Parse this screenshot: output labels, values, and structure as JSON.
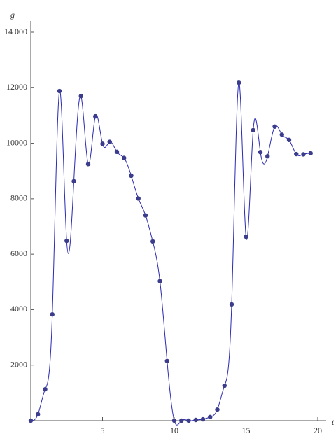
{
  "chart_data": {
    "type": "line",
    "markers": true,
    "smooth": true,
    "x_label": "t",
    "y_label": "g",
    "x": [
      0,
      0.5,
      1,
      1.5,
      2,
      2.5,
      3,
      3.5,
      4,
      4.5,
      5,
      5.5,
      6,
      6.5,
      7,
      7.5,
      8,
      8.5,
      9,
      9.5,
      10,
      10.5,
      11,
      11.5,
      12,
      12.5,
      13,
      13.5,
      14,
      14.5,
      15,
      15.5,
      16,
      16.5,
      17,
      17.5,
      18,
      18.5,
      19,
      19.5
    ],
    "values": [
      0,
      230,
      1130,
      3830,
      11880,
      6480,
      8630,
      11700,
      9250,
      10970,
      9980,
      10050,
      9690,
      9470,
      8830,
      8010,
      7400,
      6460,
      5030,
      2150,
      0,
      0,
      0,
      25,
      50,
      130,
      400,
      1260,
      4190,
      12180,
      6630,
      10470,
      9680,
      9530,
      10600,
      10310,
      10120,
      9610,
      9600,
      9640
    ],
    "color": "#3c3c8c",
    "line_color": "#2b2bb3",
    "xlim": [
      0,
      20
    ],
    "ylim": [
      0,
      14000
    ],
    "xticks": [
      5,
      10,
      15,
      20
    ],
    "yticks": [
      2000,
      4000,
      6000,
      8000,
      10000,
      12000,
      {
        "value": 14000,
        "label": "14 000"
      }
    ]
  }
}
